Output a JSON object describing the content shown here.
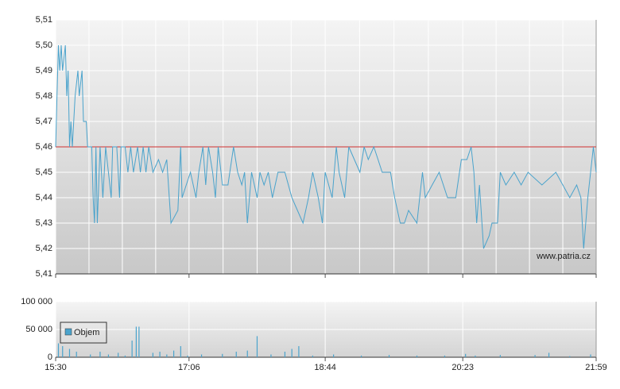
{
  "chart_data": [
    {
      "type": "line",
      "watermark": "www.patria.cz",
      "x": [
        930,
        931,
        932,
        933,
        934,
        935,
        937,
        938,
        939,
        940,
        941,
        942,
        944,
        946,
        947,
        949,
        950,
        952,
        953,
        956,
        957,
        958,
        959,
        960,
        962,
        964,
        965,
        966,
        970,
        971,
        974,
        976,
        977,
        980,
        982,
        984,
        986,
        989,
        991,
        993,
        995,
        997,
        1000,
        1004,
        1007,
        1010,
        1013,
        1018,
        1020,
        1021,
        1024,
        1027,
        1031,
        1033,
        1036,
        1038,
        1040,
        1043,
        1045,
        1047,
        1050,
        1054,
        1058,
        1061,
        1064,
        1066,
        1068,
        1071,
        1075,
        1077,
        1080,
        1083,
        1086,
        1090,
        1095,
        1100,
        1104,
        1108,
        1112,
        1115,
        1119,
        1122,
        1124,
        1129,
        1132,
        1134,
        1138,
        1141,
        1145,
        1149,
        1152,
        1155,
        1159,
        1162,
        1165,
        1168,
        1171,
        1174,
        1178,
        1181,
        1184,
        1190,
        1194,
        1196,
        1201,
        1206,
        1212,
        1218,
        1222,
        1226,
        1229,
        1231,
        1233,
        1235,
        1238,
        1242,
        1244,
        1248,
        1250,
        1254,
        1260,
        1265,
        1270,
        1280,
        1290,
        1300,
        1305,
        1308,
        1310,
        1313,
        1317,
        1319
      ],
      "series": [
        {
          "color": "#4aa3cc",
          "values": [
            5.46,
            5.48,
            5.5,
            5.49,
            5.5,
            5.49,
            5.5,
            5.48,
            5.49,
            5.46,
            5.47,
            5.46,
            5.48,
            5.49,
            5.48,
            5.49,
            5.47,
            5.47,
            5.46,
            5.46,
            5.44,
            5.43,
            5.46,
            5.43,
            5.46,
            5.44,
            5.45,
            5.46,
            5.44,
            5.46,
            5.46,
            5.44,
            5.46,
            5.46,
            5.45,
            5.46,
            5.45,
            5.46,
            5.45,
            5.46,
            5.45,
            5.46,
            5.45,
            5.455,
            5.45,
            5.455,
            5.43,
            5.435,
            5.46,
            5.44,
            5.445,
            5.45,
            5.44,
            5.45,
            5.46,
            5.445,
            5.46,
            5.45,
            5.44,
            5.46,
            5.445,
            5.445,
            5.46,
            5.45,
            5.445,
            5.45,
            5.43,
            5.45,
            5.44,
            5.45,
            5.445,
            5.45,
            5.44,
            5.45,
            5.45,
            5.44,
            5.435,
            5.43,
            5.44,
            5.45,
            5.44,
            5.43,
            5.45,
            5.44,
            5.46,
            5.45,
            5.44,
            5.46,
            5.455,
            5.45,
            5.46,
            5.455,
            5.46,
            5.455,
            5.45,
            5.45,
            5.45,
            5.44,
            5.43,
            5.43,
            5.435,
            5.43,
            5.45,
            5.44,
            5.445,
            5.45,
            5.44,
            5.44,
            5.455,
            5.455,
            5.46,
            5.45,
            5.43,
            5.445,
            5.42,
            5.425,
            5.43,
            5.43,
            5.45,
            5.445,
            5.45,
            5.445,
            5.45,
            5.445,
            5.45,
            5.44,
            5.445,
            5.44,
            5.42,
            5.44,
            5.46,
            5.45
          ]
        }
      ],
      "reference_line": {
        "value": 5.46,
        "color": "#d03030"
      },
      "xlim": [
        930,
        1319
      ],
      "ylim": [
        5.41,
        5.51
      ],
      "yticks": [
        {
          "value": 5.41,
          "label": "5,41"
        },
        {
          "value": 5.42,
          "label": "5,42"
        },
        {
          "value": 5.43,
          "label": "5,43"
        },
        {
          "value": 5.44,
          "label": "5,44"
        },
        {
          "value": 5.45,
          "label": "5,45"
        },
        {
          "value": 5.46,
          "label": "5,46"
        },
        {
          "value": 5.47,
          "label": "5,47"
        },
        {
          "value": 5.48,
          "label": "5,48"
        },
        {
          "value": 5.49,
          "label": "5,49"
        },
        {
          "value": 5.5,
          "label": "5,50"
        },
        {
          "value": 5.51,
          "label": "5,51"
        }
      ],
      "grid": true
    },
    {
      "type": "bar",
      "x": [
        932,
        935,
        940,
        945,
        955,
        962,
        968,
        975,
        980,
        985,
        988,
        990,
        1000,
        1005,
        1010,
        1015,
        1020,
        1025,
        1035,
        1050,
        1060,
        1068,
        1075,
        1085,
        1095,
        1100,
        1105,
        1115,
        1130,
        1150,
        1170,
        1190,
        1210,
        1225,
        1232,
        1250,
        1275,
        1285,
        1300,
        1315
      ],
      "series": [
        {
          "name": "Objem",
          "color": "#4aa3cc",
          "values": [
            25000,
            20000,
            15000,
            10000,
            5000,
            10000,
            5000,
            8000,
            3000,
            30000,
            55000,
            55000,
            8000,
            10000,
            5000,
            12000,
            20000,
            3000,
            5000,
            6000,
            10000,
            12000,
            38000,
            5000,
            10000,
            15000,
            20000,
            3000,
            5000,
            3000,
            4000,
            3000,
            3000,
            6000,
            3000,
            4000,
            4000,
            8000,
            2000,
            5000
          ]
        }
      ],
      "xlim": [
        930,
        1319
      ],
      "xticks": [
        {
          "value": 930,
          "label": "15:30"
        },
        {
          "value": 1026,
          "label": "17:06"
        },
        {
          "value": 1124,
          "label": "18:44"
        },
        {
          "value": 1223,
          "label": "20:23"
        },
        {
          "value": 1319,
          "label": "21:59"
        }
      ],
      "ylim": [
        0,
        100000
      ],
      "yticks": [
        0,
        {
          "value": 50000,
          "label": "50 000"
        },
        {
          "value": 100000,
          "label": "100 000"
        }
      ],
      "legend": "upper left",
      "grid": true
    }
  ]
}
